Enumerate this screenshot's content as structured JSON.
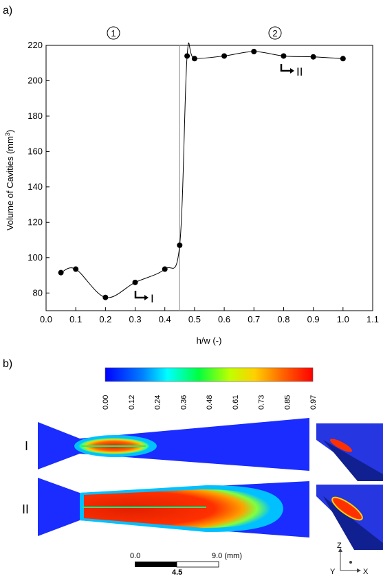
{
  "panels": {
    "a": "a)",
    "b": "b)"
  },
  "chart_data": {
    "type": "scatter",
    "xlabel": "h/w (-)",
    "ylabel": "Volume of Cavities (mm",
    "ylabel_sup": "3",
    "ylabel_tail": ")",
    "xlim": [
      0.0,
      1.1
    ],
    "ylim": [
      70,
      220
    ],
    "xticks": [
      "0.0",
      "0.1",
      "0.2",
      "0.3",
      "0.4",
      "0.5",
      "0.6",
      "0.7",
      "0.8",
      "0.9",
      "1.0",
      "1.1"
    ],
    "yticks": [
      "80",
      "100",
      "120",
      "140",
      "160",
      "180",
      "200",
      "220"
    ],
    "regions": [
      "1",
      "2"
    ],
    "divider_x": 0.45,
    "annotations": [
      {
        "label": "I",
        "x": 0.3,
        "y": 86
      },
      {
        "label": "II",
        "x": 0.8,
        "y": 214
      }
    ],
    "series": [
      {
        "x": [
          0.05,
          0.1,
          0.2,
          0.3,
          0.4,
          0.45,
          0.475,
          0.5,
          0.6,
          0.7,
          0.8,
          0.9,
          1.0
        ],
        "y": [
          91.5,
          93.5,
          77.5,
          86,
          93.5,
          107,
          214,
          212.5,
          214,
          216.5,
          214,
          213.5,
          212.5
        ]
      }
    ]
  },
  "colorbar": {
    "ticks": [
      "0.00",
      "0.12",
      "0.24",
      "0.36",
      "0.48",
      "0.61",
      "0.73",
      "0.85",
      "0.97"
    ],
    "colors": [
      "#0000ff",
      "#00bfff",
      "#00ff80",
      "#ffff00",
      "#ff8000",
      "#ff0000",
      "#cc0000"
    ]
  },
  "contours": {
    "row1": "I",
    "row2": "II"
  },
  "scale_bar": {
    "left": "0.0",
    "mid": "4.5",
    "right": "9.0 (mm)"
  },
  "axes_triad": {
    "z": "Z",
    "y": "Y",
    "x": "X"
  }
}
